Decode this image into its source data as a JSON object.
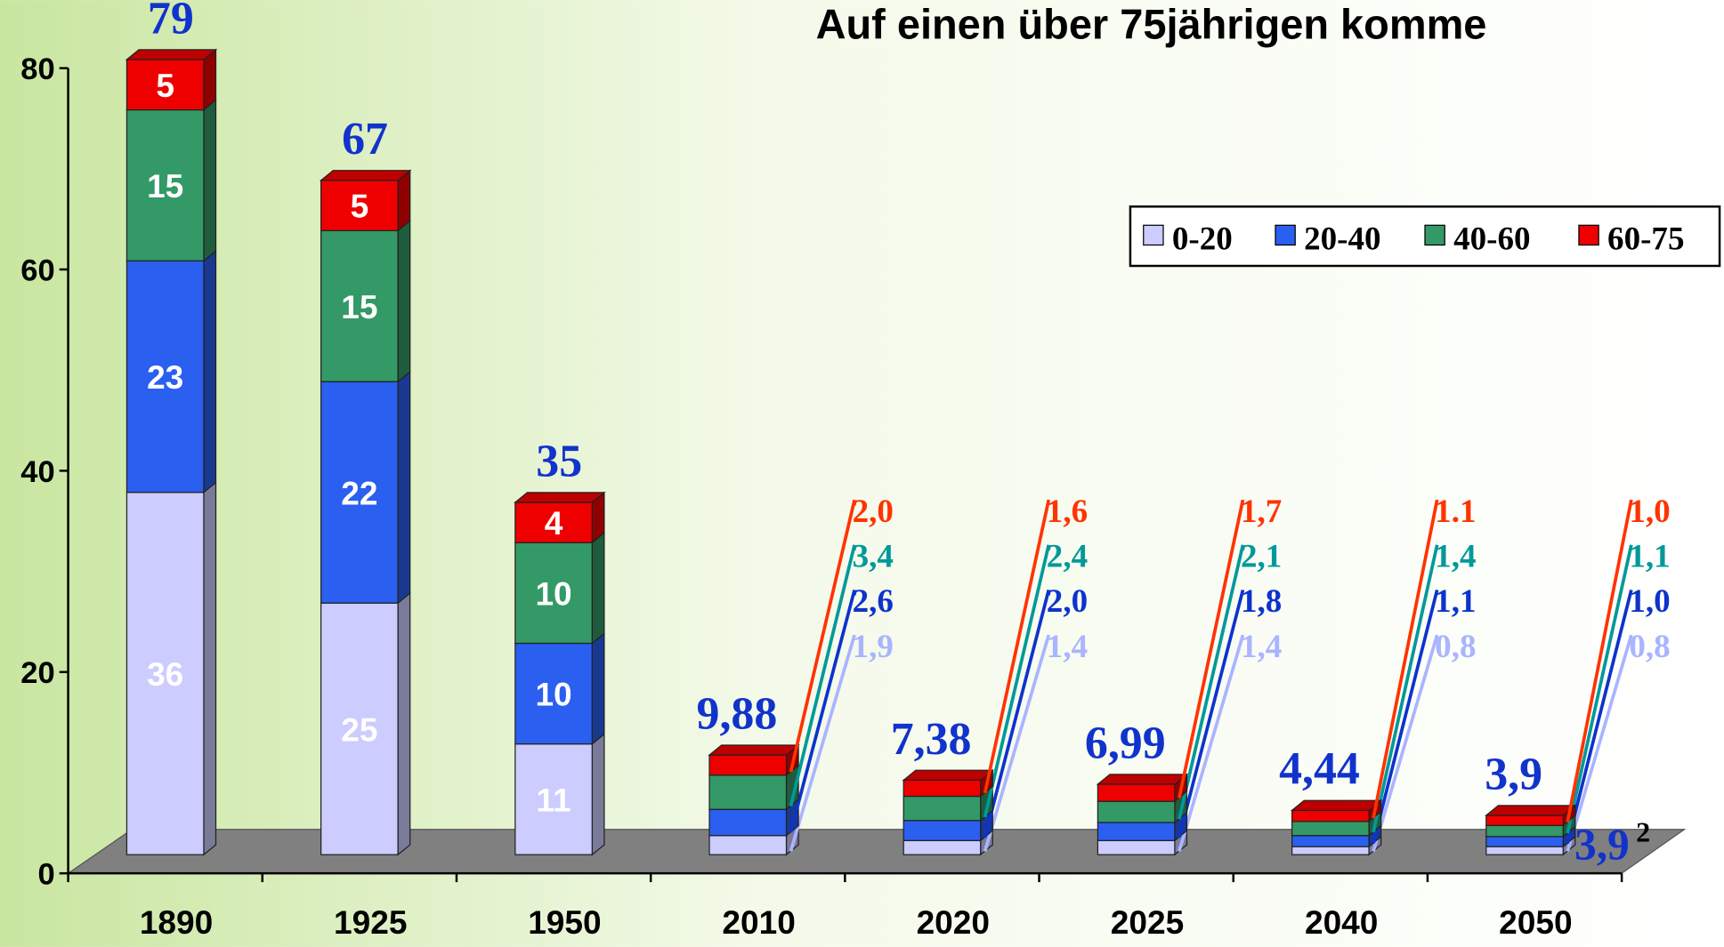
{
  "chart_data": {
    "type": "stacked_bar_3d",
    "title": "Auf einen über 75jährigen komme",
    "categories": [
      "1890",
      "1925",
      "1950",
      "2010",
      "2020",
      "2025",
      "2040",
      "2050"
    ],
    "series": [
      {
        "name": "0-20",
        "color": "#ccccff",
        "label_color": "#aab4ff",
        "values": [
          36,
          25,
          11,
          1.9,
          1.4,
          1.4,
          0.8,
          0.8
        ],
        "value_labels": [
          "36",
          "25",
          "11",
          "1,9",
          "1,4",
          "1,4",
          "0,8",
          "0,8"
        ]
      },
      {
        "name": "20-40",
        "color": "#2a5ff0",
        "label_color": "#0d33cc",
        "values": [
          23,
          22,
          10,
          2.6,
          2.0,
          1.8,
          1.1,
          1.0
        ],
        "value_labels": [
          "23",
          "22",
          "10",
          "2,6",
          "2,0",
          "1,8",
          "1,1",
          "1,0"
        ]
      },
      {
        "name": "40-60",
        "color": "#339966",
        "label_color": "#009999",
        "values": [
          15,
          15,
          10,
          3.4,
          2.4,
          2.1,
          1.4,
          1.1
        ],
        "value_labels": [
          "15",
          "15",
          "10",
          "3,4",
          "2,4",
          "2,1",
          "1,4",
          "1,1"
        ]
      },
      {
        "name": "60-75",
        "color": "#ee0000",
        "label_color": "#ff3300",
        "values": [
          5,
          5,
          4,
          2.0,
          1.6,
          1.7,
          1.1,
          1.0
        ],
        "value_labels": [
          "5",
          "5",
          "4",
          "2,0",
          "1,6",
          "1,7",
          "1.1",
          "1,0"
        ]
      }
    ],
    "totals": [
      79,
      67,
      35,
      9.88,
      7.38,
      6.99,
      4.44,
      3.9
    ],
    "total_labels": [
      "79",
      "67",
      "35",
      "9,88",
      "7,38",
      "6,99",
      "4,44",
      "3,9"
    ],
    "annotations": [
      "3,9",
      "2"
    ],
    "ylim": [
      0,
      80
    ],
    "yticks": [
      0,
      20,
      40,
      60,
      80
    ],
    "legend": "top-right"
  }
}
